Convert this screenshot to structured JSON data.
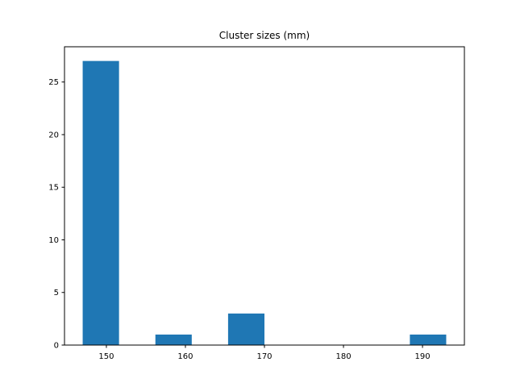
{
  "chart_data": {
    "type": "bar",
    "title": "Cluster sizes (mm)",
    "xlabel": "",
    "ylabel": "",
    "bins": [
      {
        "start": 147,
        "end": 151.6,
        "count": 27
      },
      {
        "start": 151.6,
        "end": 156.2,
        "count": 0
      },
      {
        "start": 156.2,
        "end": 160.8,
        "count": 1
      },
      {
        "start": 160.8,
        "end": 165.4,
        "count": 0
      },
      {
        "start": 165.4,
        "end": 170.0,
        "count": 3
      },
      {
        "start": 170.0,
        "end": 174.6,
        "count": 0
      },
      {
        "start": 174.6,
        "end": 179.2,
        "count": 0
      },
      {
        "start": 179.2,
        "end": 183.8,
        "count": 0
      },
      {
        "start": 183.8,
        "end": 188.4,
        "count": 0
      },
      {
        "start": 188.4,
        "end": 193.0,
        "count": 1
      }
    ],
    "xlim": [
      144.7,
      195.3
    ],
    "ylim": [
      0,
      28.35
    ],
    "xticks": [
      150,
      160,
      170,
      180,
      190
    ],
    "yticks": [
      0,
      5,
      10,
      15,
      20,
      25
    ],
    "bar_color": "#1f77b4",
    "grid": false,
    "legend": false
  }
}
